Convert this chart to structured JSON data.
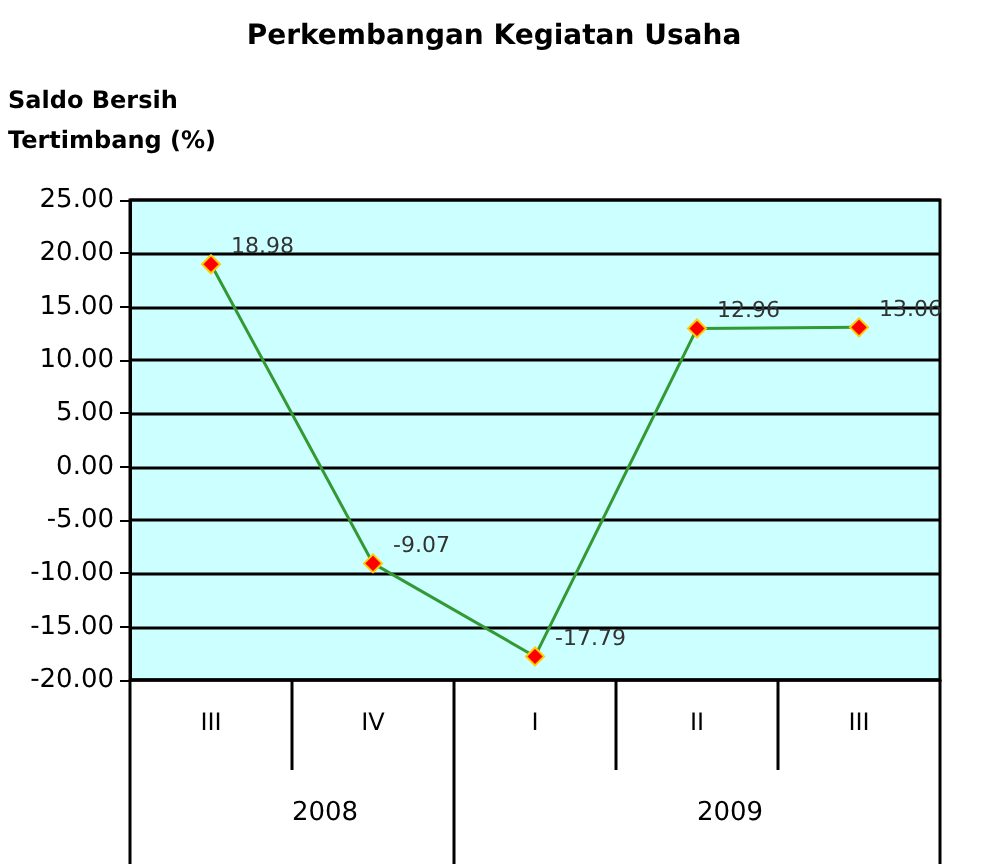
{
  "chart_data": {
    "type": "line",
    "title": "Perkembangan Kegiatan Usaha",
    "ylabel": "Saldo Bersih\nTertimbang (%)",
    "categories": [
      "III",
      "IV",
      "I",
      "II",
      "III"
    ],
    "series": [
      {
        "color": "#339933",
        "values": [
          18.98,
          -9.07,
          -17.79,
          12.96,
          13.06
        ]
      }
    ],
    "marker": "diamond",
    "data_labels": true,
    "grid": "y",
    "ylim": [
      -20,
      25
    ],
    "yticks": [
      {
        "value": -20,
        "label": "-20.00"
      },
      {
        "value": -15,
        "label": "-15.00"
      },
      {
        "value": -10,
        "label": "-10.00"
      },
      {
        "value": -5,
        "label": "-5.00"
      },
      {
        "value": 0,
        "label": "0.00"
      },
      {
        "value": 5,
        "label": "5.00"
      },
      {
        "value": 10,
        "label": "10.00"
      },
      {
        "value": 15,
        "label": "15.00"
      },
      {
        "value": 20,
        "label": "20.00"
      },
      {
        "value": 25,
        "label": "25.00"
      }
    ],
    "annotations": [
      "2008",
      "2009"
    ]
  }
}
